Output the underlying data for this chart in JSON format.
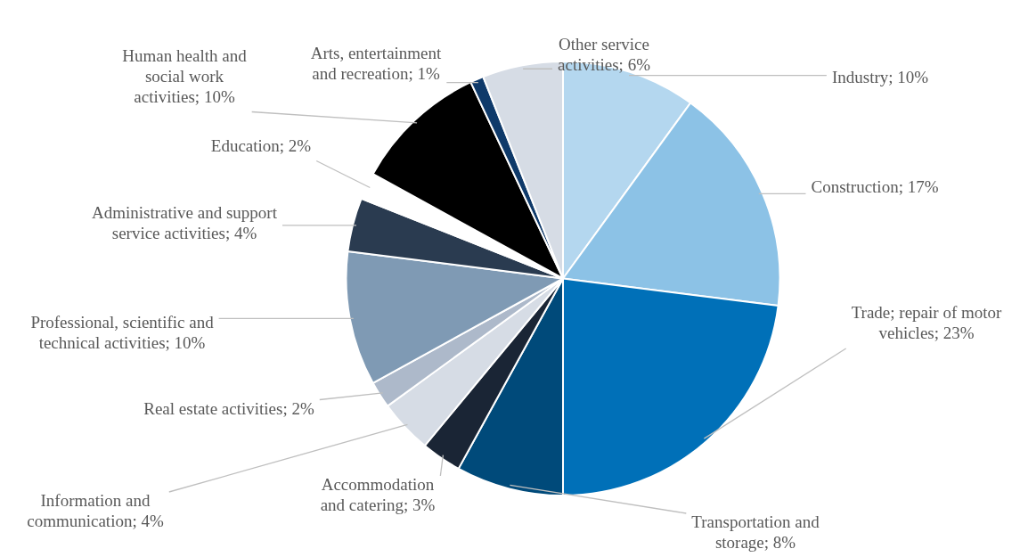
{
  "chart_data": {
    "type": "pie",
    "categories": [
      "Industry",
      "Construction",
      "Trade; repair of motor vehicles",
      "Transportation and storage",
      "Accommodation and catering",
      "Information and communication",
      "Real estate activities",
      "Professional, scientific and technical activities",
      "Administrative and support service activities",
      "Education",
      "Human health and social work activities",
      "Arts, entertainment and recreation",
      "Other service activities"
    ],
    "values": [
      10,
      17,
      23,
      8,
      3,
      4,
      2,
      10,
      4,
      2,
      10,
      1,
      6
    ],
    "value_labels": [
      "10%",
      "17%",
      "23%",
      "8%",
      "3%",
      "4%",
      "2%",
      "10%",
      "4%",
      "2%",
      "10%",
      "1%",
      "6%"
    ],
    "colors": [
      "#b4d7ef",
      "#8cc2e6",
      "#0070b8",
      "#004a7a",
      "#1a2535",
      "#d6dce5",
      "#adb9ca",
      "#7f9ab4",
      "#2a3b50",
      "#ffffff",
      "#000000",
      "#0f3a6a",
      "#d6dce5"
    ],
    "legend": false
  }
}
